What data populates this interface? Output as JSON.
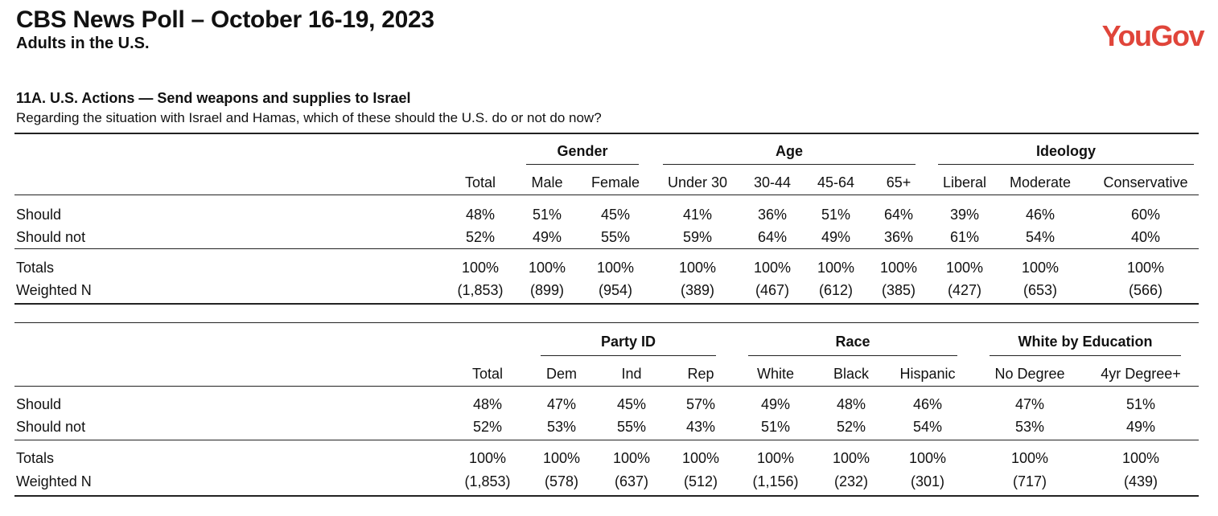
{
  "header": {
    "title": "CBS News Poll – October 16-19, 2023",
    "subtitle": "Adults in the U.S.",
    "logo": "YouGov"
  },
  "question": {
    "title": "11A. U.S. Actions — Send weapons and supplies to Israel",
    "text": "Regarding the situation with Israel and Hamas, which of these should the U.S. do or not do now?"
  },
  "tables": [
    {
      "groups": [
        {
          "label": "Gender"
        },
        {
          "label": "Age"
        },
        {
          "label": "Ideology"
        }
      ],
      "columns": [
        "Total",
        "Male",
        "Female",
        "Under 30",
        "30-44",
        "45-64",
        "65+",
        "Liberal",
        "Moderate",
        "Conservative"
      ],
      "rows": [
        {
          "label": "Should",
          "values": [
            "48%",
            "51%",
            "45%",
            "41%",
            "36%",
            "51%",
            "64%",
            "39%",
            "46%",
            "60%"
          ]
        },
        {
          "label": "Should not",
          "values": [
            "52%",
            "49%",
            "55%",
            "59%",
            "64%",
            "49%",
            "36%",
            "61%",
            "54%",
            "40%"
          ]
        },
        {
          "label": "Totals",
          "values": [
            "100%",
            "100%",
            "100%",
            "100%",
            "100%",
            "100%",
            "100%",
            "100%",
            "100%",
            "100%"
          ]
        },
        {
          "label": "Weighted N",
          "values": [
            "(1,853)",
            "(899)",
            "(954)",
            "(389)",
            "(467)",
            "(612)",
            "(385)",
            "(427)",
            "(653)",
            "(566)"
          ]
        }
      ]
    },
    {
      "groups": [
        {
          "label": "Party ID"
        },
        {
          "label": "Race"
        },
        {
          "label": "White by Education"
        }
      ],
      "columns": [
        "Total",
        "Dem",
        "Ind",
        "Rep",
        "White",
        "Black",
        "Hispanic",
        "No Degree",
        "4yr Degree+"
      ],
      "rows": [
        {
          "label": "Should",
          "values": [
            "48%",
            "47%",
            "45%",
            "57%",
            "49%",
            "48%",
            "46%",
            "47%",
            "51%"
          ]
        },
        {
          "label": "Should not",
          "values": [
            "52%",
            "53%",
            "55%",
            "43%",
            "51%",
            "52%",
            "54%",
            "53%",
            "49%"
          ]
        },
        {
          "label": "Totals",
          "values": [
            "100%",
            "100%",
            "100%",
            "100%",
            "100%",
            "100%",
            "100%",
            "100%",
            "100%"
          ]
        },
        {
          "label": "Weighted N",
          "values": [
            "(1,853)",
            "(578)",
            "(637)",
            "(512)",
            "(1,156)",
            "(232)",
            "(301)",
            "(717)",
            "(439)"
          ]
        }
      ]
    }
  ]
}
